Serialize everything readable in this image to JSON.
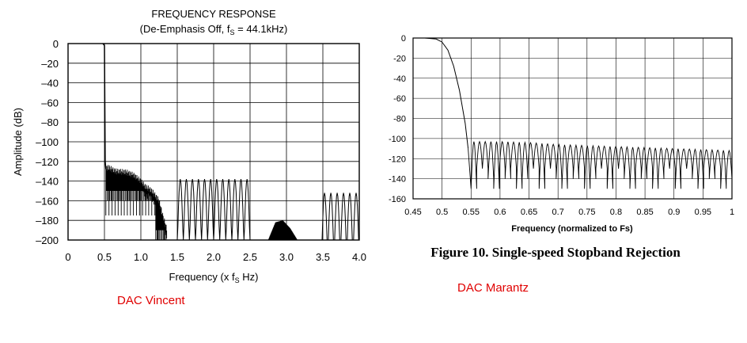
{
  "chart_data": [
    {
      "type": "line",
      "title": "FREQUENCY RESPONSE",
      "subtitle_prefix": "(De-Emphasis Off, f",
      "subtitle_sub": "S",
      "subtitle_suffix": " = 44.1kHz)",
      "xlabel_prefix": "Frequency (x f",
      "xlabel_sub": "S",
      "xlabel_suffix": " Hz)",
      "ylabel": "Amplitude (dB)",
      "xlim": [
        0,
        4.0
      ],
      "ylim": [
        -200,
        0
      ],
      "x_ticks": [
        "0",
        "0.5",
        "1.0",
        "1.5",
        "2.0",
        "2.5",
        "3.0",
        "3.5",
        "4.0"
      ],
      "y_ticks": [
        "0",
        "–20",
        "–40",
        "–60",
        "–80",
        "–100",
        "–120",
        "–140",
        "–160",
        "–180",
        "–200"
      ],
      "grid": true,
      "series": [
        {
          "x": [
            0.48,
            0.5,
            0.51,
            0.52,
            0.55,
            0.65,
            0.8,
            0.9,
            1.0,
            1.05,
            1.15,
            1.25,
            1.3,
            1.4,
            1.5,
            1.55,
            1.75,
            2.0,
            2.25,
            2.4,
            2.5,
            2.65,
            2.75,
            2.85,
            2.95,
            3.05,
            3.15,
            3.25,
            3.4,
            3.5,
            3.7,
            4.0
          ],
          "y": [
            0,
            -2,
            -120,
            -128,
            -126,
            -130,
            -131,
            -134,
            -140,
            -145,
            -150,
            -160,
            -175,
            -200,
            -200,
            -138,
            -137,
            -138,
            -140,
            -200,
            -200,
            -200,
            -200,
            -182,
            -180,
            -188,
            -200,
            -200,
            -200,
            -158,
            -152,
            -152
          ]
        }
      ],
      "caption": "DAC Vincent"
    },
    {
      "type": "line",
      "title": "",
      "xlabel": "Frequency (normalized to Fs)",
      "ylabel": "",
      "xlim": [
        0.45,
        1.0
      ],
      "ylim": [
        -160,
        0
      ],
      "x_ticks": [
        "0.45",
        "0.5",
        "0.55",
        "0.6",
        "0.65",
        "0.7",
        "0.75",
        "0.8",
        "0.85",
        "0.9",
        "0.95",
        "1"
      ],
      "y_ticks": [
        "0",
        "-20",
        "-40",
        "-60",
        "-80",
        "-100",
        "-120",
        "-140",
        "-160"
      ],
      "grid": true,
      "series": [
        {
          "x": [
            0.45,
            0.47,
            0.49,
            0.5,
            0.51,
            0.52,
            0.53,
            0.54,
            0.545,
            0.55,
            0.6,
            0.65,
            0.7,
            0.75,
            0.8,
            0.85,
            0.9,
            0.95,
            1.0
          ],
          "y": [
            0,
            0,
            -1,
            -4,
            -12,
            -28,
            -52,
            -85,
            -110,
            -103,
            -103,
            -104,
            -106,
            -107,
            -108,
            -109,
            -110,
            -111,
            -112
          ]
        }
      ],
      "caption_title": "Figure 10.  Single-speed Stopband Rejection",
      "caption": "DAC Marantz"
    }
  ]
}
